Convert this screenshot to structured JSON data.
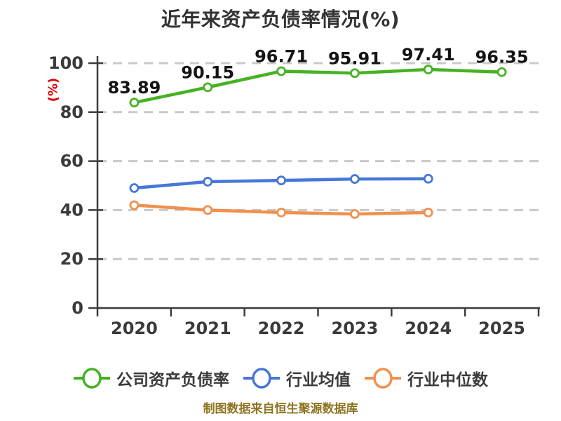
{
  "chart_data": {
    "type": "line",
    "title": "近年来资产负债率情况(%)",
    "ylabel": "(%)",
    "x_categories": [
      "2020",
      "2021",
      "2022",
      "2023",
      "2024",
      "2025"
    ],
    "ylim": [
      0,
      100
    ],
    "yticks": [
      0,
      20,
      40,
      60,
      80,
      100
    ],
    "grid": "horizontal-dashed",
    "legend_position": "bottom",
    "series": [
      {
        "name": "公司资产负债率",
        "color": "#46b223",
        "values": [
          83.89,
          90.15,
          96.71,
          95.91,
          97.41,
          96.35
        ],
        "data_labels": true
      },
      {
        "name": "行业均值",
        "color": "#4677d8",
        "values": [
          49,
          51.6,
          52.1,
          52.7,
          52.8
        ],
        "data_labels": false
      },
      {
        "name": "行业中位数",
        "color": "#f0914e",
        "values": [
          42,
          40,
          39,
          38.4,
          39
        ],
        "data_labels": false
      }
    ],
    "source_note": "制图数据来自恒生聚源数据库"
  },
  "colors": {
    "background": "#ffffff",
    "title": "#333333",
    "axis": "#3d3d3d",
    "tick_label": "#3a3a3a",
    "grid": "#c9c9c9",
    "ylabel": "#e00000",
    "data_label": "#141414",
    "legend_text": "#3c3c3c",
    "source_note": "#8e741f"
  }
}
